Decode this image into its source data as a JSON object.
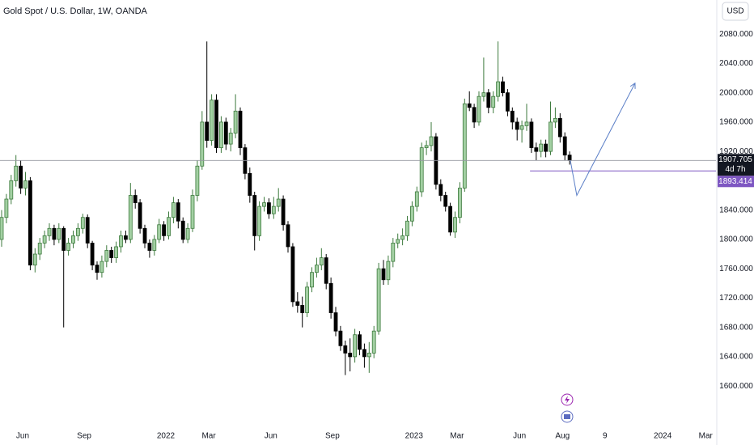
{
  "chart_data": {
    "type": "candlestick",
    "title": "Gold Spot / U.S. Dollar, 1W, OANDA",
    "currency": "USD",
    "up_color": "#a3d0a3",
    "up_border": "#3d7a3d",
    "down_color": "#000000",
    "candles": [
      [
        1800,
        1840,
        1790,
        1830
      ],
      [
        1830,
        1862,
        1822,
        1855
      ],
      [
        1855,
        1888,
        1848,
        1880
      ],
      [
        1880,
        1915,
        1872,
        1900
      ],
      [
        1900,
        1908,
        1862,
        1870
      ],
      [
        1870,
        1892,
        1860,
        1880
      ],
      [
        1880,
        1885,
        1758,
        1765
      ],
      [
        1765,
        1788,
        1755,
        1780
      ],
      [
        1780,
        1802,
        1772,
        1795
      ],
      [
        1795,
        1812,
        1788,
        1805
      ],
      [
        1805,
        1822,
        1798,
        1815
      ],
      [
        1815,
        1820,
        1792,
        1800
      ],
      [
        1800,
        1822,
        1795,
        1815
      ],
      [
        1815,
        1818,
        1680,
        1785
      ],
      [
        1785,
        1802,
        1778,
        1795
      ],
      [
        1795,
        1812,
        1788,
        1805
      ],
      [
        1805,
        1822,
        1798,
        1815
      ],
      [
        1815,
        1835,
        1808,
        1830
      ],
      [
        1830,
        1834,
        1788,
        1795
      ],
      [
        1795,
        1798,
        1758,
        1765
      ],
      [
        1765,
        1770,
        1745,
        1755
      ],
      [
        1755,
        1778,
        1748,
        1770
      ],
      [
        1770,
        1792,
        1762,
        1785
      ],
      [
        1785,
        1790,
        1768,
        1775
      ],
      [
        1775,
        1797,
        1768,
        1790
      ],
      [
        1790,
        1812,
        1782,
        1805
      ],
      [
        1805,
        1812,
        1795,
        1800
      ],
      [
        1800,
        1877,
        1795,
        1860
      ],
      [
        1860,
        1868,
        1842,
        1850
      ],
      [
        1850,
        1855,
        1808,
        1815
      ],
      [
        1815,
        1820,
        1788,
        1795
      ],
      [
        1795,
        1800,
        1775,
        1785
      ],
      [
        1785,
        1806,
        1778,
        1800
      ],
      [
        1800,
        1828,
        1795,
        1820
      ],
      [
        1820,
        1825,
        1798,
        1805
      ],
      [
        1805,
        1838,
        1800,
        1830
      ],
      [
        1830,
        1858,
        1822,
        1850
      ],
      [
        1850,
        1855,
        1815,
        1825
      ],
      [
        1825,
        1830,
        1795,
        1800
      ],
      [
        1800,
        1822,
        1795,
        1815
      ],
      [
        1815,
        1868,
        1810,
        1860
      ],
      [
        1860,
        1908,
        1852,
        1900
      ],
      [
        1900,
        1975,
        1895,
        1960
      ],
      [
        1960,
        2070,
        1925,
        1935
      ],
      [
        1935,
        1998,
        1928,
        1990
      ],
      [
        1990,
        1998,
        1918,
        1925
      ],
      [
        1925,
        1968,
        1918,
        1960
      ],
      [
        1960,
        1966,
        1922,
        1930
      ],
      [
        1930,
        1952,
        1920,
        1945
      ],
      [
        1945,
        1998,
        1938,
        1975
      ],
      [
        1975,
        1980,
        1915,
        1925
      ],
      [
        1925,
        1930,
        1882,
        1890
      ],
      [
        1890,
        1898,
        1850,
        1860
      ],
      [
        1860,
        1865,
        1785,
        1805
      ],
      [
        1805,
        1852,
        1798,
        1845
      ],
      [
        1845,
        1858,
        1838,
        1850
      ],
      [
        1850,
        1856,
        1828,
        1835
      ],
      [
        1835,
        1858,
        1828,
        1845
      ],
      [
        1845,
        1870,
        1838,
        1855
      ],
      [
        1855,
        1860,
        1812,
        1820
      ],
      [
        1820,
        1825,
        1782,
        1790
      ],
      [
        1790,
        1795,
        1708,
        1715
      ],
      [
        1715,
        1728,
        1700,
        1710
      ],
      [
        1710,
        1722,
        1680,
        1700
      ],
      [
        1700,
        1742,
        1694,
        1735
      ],
      [
        1735,
        1762,
        1728,
        1755
      ],
      [
        1755,
        1775,
        1748,
        1765
      ],
      [
        1765,
        1788,
        1758,
        1775
      ],
      [
        1775,
        1780,
        1732,
        1740
      ],
      [
        1740,
        1748,
        1692,
        1700
      ],
      [
        1700,
        1708,
        1668,
        1675
      ],
      [
        1675,
        1682,
        1648,
        1655
      ],
      [
        1655,
        1662,
        1615,
        1645
      ],
      [
        1645,
        1665,
        1620,
        1640
      ],
      [
        1640,
        1678,
        1632,
        1670
      ],
      [
        1670,
        1675,
        1642,
        1650
      ],
      [
        1650,
        1658,
        1625,
        1640
      ],
      [
        1640,
        1660,
        1618,
        1645
      ],
      [
        1645,
        1682,
        1638,
        1675
      ],
      [
        1675,
        1768,
        1670,
        1760
      ],
      [
        1760,
        1772,
        1738,
        1745
      ],
      [
        1745,
        1778,
        1738,
        1770
      ],
      [
        1770,
        1802,
        1762,
        1795
      ],
      [
        1795,
        1808,
        1788,
        1800
      ],
      [
        1800,
        1815,
        1792,
        1805
      ],
      [
        1805,
        1832,
        1798,
        1825
      ],
      [
        1825,
        1852,
        1818,
        1845
      ],
      [
        1845,
        1872,
        1838,
        1865
      ],
      [
        1865,
        1932,
        1858,
        1925
      ],
      [
        1925,
        1935,
        1915,
        1928
      ],
      [
        1928,
        1960,
        1920,
        1940
      ],
      [
        1940,
        1945,
        1868,
        1875
      ],
      [
        1875,
        1882,
        1852,
        1860
      ],
      [
        1860,
        1865,
        1838,
        1845
      ],
      [
        1845,
        1850,
        1805,
        1810
      ],
      [
        1810,
        1838,
        1802,
        1830
      ],
      [
        1830,
        1878,
        1822,
        1870
      ],
      [
        1870,
        1992,
        1865,
        1985
      ],
      [
        1985,
        2002,
        1975,
        1980
      ],
      [
        1980,
        1985,
        1952,
        1960
      ],
      [
        1960,
        2002,
        1955,
        1995
      ],
      [
        1995,
        2048,
        1988,
        2000
      ],
      [
        2000,
        2005,
        1972,
        1980
      ],
      [
        1980,
        2002,
        1972,
        1995
      ],
      [
        1995,
        2070,
        1988,
        2015
      ],
      [
        2015,
        2022,
        1995,
        2000
      ],
      [
        2000,
        2005,
        1968,
        1975
      ],
      [
        1975,
        1980,
        1950,
        1960
      ],
      [
        1960,
        1966,
        1935,
        1950
      ],
      [
        1950,
        1962,
        1932,
        1955
      ],
      [
        1955,
        1985,
        1948,
        1960
      ],
      [
        1960,
        1965,
        1918,
        1925
      ],
      [
        1925,
        1932,
        1908,
        1920
      ],
      [
        1920,
        1936,
        1912,
        1930
      ],
      [
        1930,
        1936,
        1912,
        1920
      ],
      [
        1920,
        1988,
        1915,
        1960
      ],
      [
        1960,
        1980,
        1952,
        1965
      ],
      [
        1965,
        1972,
        1932,
        1940
      ],
      [
        1940,
        1946,
        1908,
        1915
      ],
      [
        1915,
        1920,
        1902,
        1907.705
      ]
    ],
    "xlim": [
      -0.34,
      149.66
    ],
    "xticks": [
      {
        "value": 4.4,
        "label": "Jun"
      },
      {
        "value": 17.3,
        "label": "Sep"
      },
      {
        "value": 34.4,
        "label": "2022"
      },
      {
        "value": 43.4,
        "label": "Mar"
      },
      {
        "value": 56.4,
        "label": "Jun"
      },
      {
        "value": 69.3,
        "label": "Sep"
      },
      {
        "value": 86.4,
        "label": "2023"
      },
      {
        "value": 95.4,
        "label": "Mar"
      },
      {
        "value": 108.5,
        "label": "Jun"
      },
      {
        "value": 117.5,
        "label": "Aug"
      },
      {
        "value": 126.4,
        "label": "9"
      },
      {
        "value": 138.5,
        "label": "2024"
      },
      {
        "value": 147.5,
        "label": "Mar"
      }
    ],
    "ylim": [
      1545,
      2126.5
    ],
    "yticks": [
      {
        "value": 1600,
        "label": "1600.000"
      },
      {
        "value": 1640,
        "label": "1640.000"
      },
      {
        "value": 1680,
        "label": "1680.000"
      },
      {
        "value": 1720,
        "label": "1720.000"
      },
      {
        "value": 1760,
        "label": "1760.000"
      },
      {
        "value": 1800,
        "label": "1800.000"
      },
      {
        "value": 1840,
        "label": "1840.000"
      },
      {
        "value": 1880,
        "label": "1880.000"
      },
      {
        "value": 1920,
        "label": "1920.000"
      },
      {
        "value": 1960,
        "label": "1960.000"
      },
      {
        "value": 2000,
        "label": "2000.000"
      },
      {
        "value": 2040,
        "label": "2040.000"
      },
      {
        "value": 2080,
        "label": "2080.000"
      }
    ],
    "last_price": 1907.705,
    "countdown": "4d 7h",
    "level": 1893.414,
    "level_start": 110.7,
    "level_color": "#7e57c2",
    "projection": {
      "x": [
        119.15,
        120.5,
        132.7
      ],
      "y": [
        1907.705,
        1860,
        2013
      ],
      "color": "#5b7fc7"
    }
  }
}
